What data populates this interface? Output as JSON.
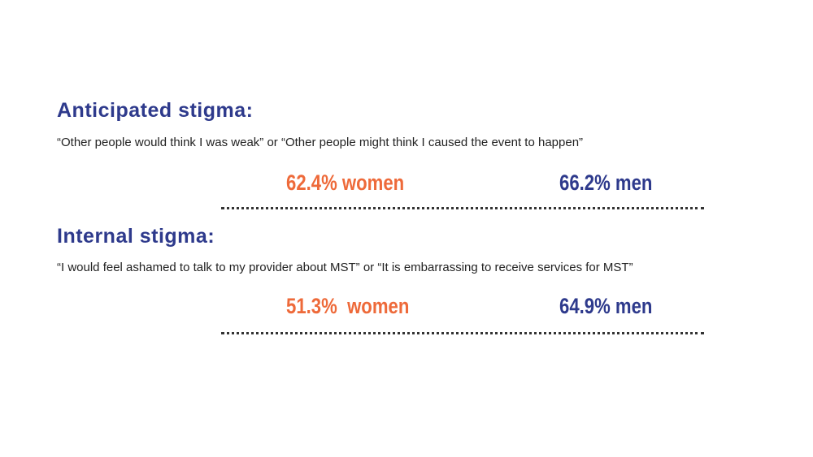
{
  "sections": [
    {
      "title": "Anticipated stigma:",
      "quote": "“Other people would think I was weak” or “Other people might think I caused the event to happen”",
      "women_stat": "62.4% women",
      "men_stat": "66.2% men"
    },
    {
      "title": "Internal stigma:",
      "quote": "“I would feel ashamed to talk to my provider about MST” or “It is embarrassing to receive services for MST”",
      "women_stat": "51.3%  women",
      "men_stat": "64.9% men"
    }
  ],
  "colors": {
    "title": "#2e3a8c",
    "women": "#ee6a3a",
    "men": "#2e3a8c",
    "text": "#222222"
  }
}
